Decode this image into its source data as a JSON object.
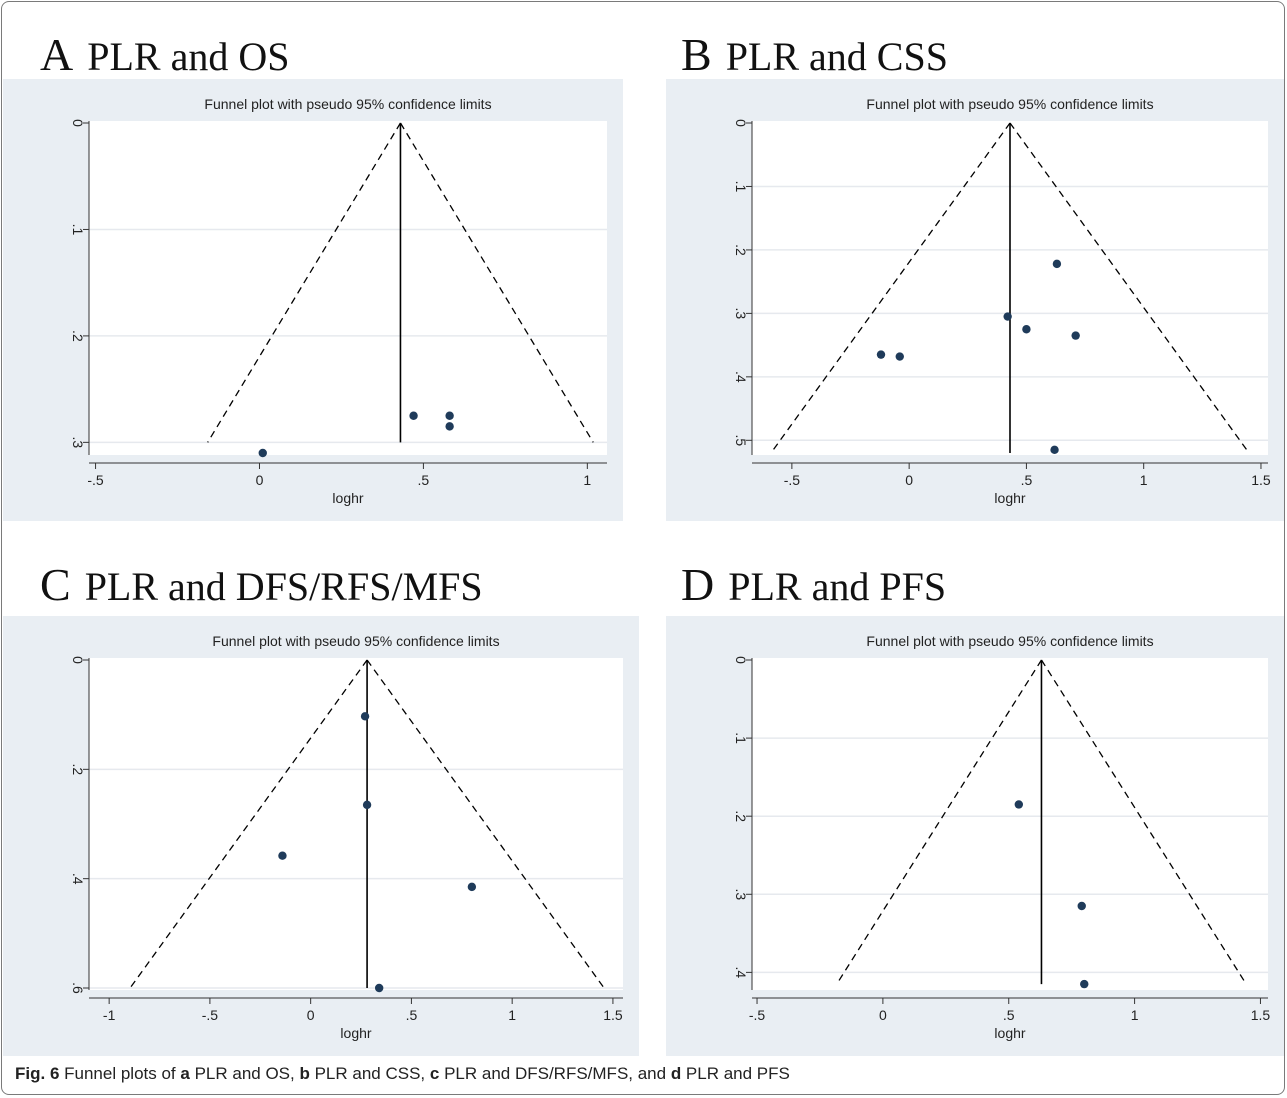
{
  "figure": {
    "caption": {
      "label": "Fig. 6",
      "parts": [
        {
          "text": " Funnel plots of ",
          "bold": false
        },
        {
          "text": "a",
          "bold": true
        },
        {
          "text": " PLR and OS, ",
          "bold": false
        },
        {
          "text": "b",
          "bold": true
        },
        {
          "text": " PLR and CSS, ",
          "bold": false
        },
        {
          "text": "c",
          "bold": true
        },
        {
          "text": " PLR and DFS/RFS/MFS, and ",
          "bold": false
        },
        {
          "text": "d",
          "bold": true
        },
        {
          "text": " PLR and PFS",
          "bold": false
        }
      ]
    },
    "colors": {
      "plot_bg": "#e9eef3",
      "panel_bg": "#ffffff",
      "marker": "#1f3b5a",
      "line": "#000000",
      "grid": "#ffffff"
    }
  },
  "panels": [
    {
      "letter": "A",
      "title": "PLR and OS"
    },
    {
      "letter": "B",
      "title": "PLR and CSS"
    },
    {
      "letter": "C",
      "title": "PLR and DFS/RFS/MFS"
    },
    {
      "letter": "D",
      "title": "PLR and PFS"
    }
  ],
  "chart_data": [
    {
      "type": "scatter",
      "title": "Funnel plot with pseudo 95% confidence limits",
      "xlabel": "loghr",
      "ylabel": "",
      "xlim": [
        -0.52,
        1.06
      ],
      "ylim": [
        0,
        0.31
      ],
      "y_reversed": true,
      "xticks": [
        {
          "v": -0.5,
          "t": "-.5"
        },
        {
          "v": 0,
          "t": "0"
        },
        {
          "v": 0.5,
          "t": ".5"
        },
        {
          "v": 1,
          "t": "1"
        }
      ],
      "yticks": [
        {
          "v": 0,
          "t": "0"
        },
        {
          "v": 0.1,
          "t": ".1"
        },
        {
          "v": 0.2,
          "t": ".2"
        },
        {
          "v": 0.3,
          "t": ".3"
        }
      ],
      "pooled_loghr": 0.43,
      "funnel_max_se": 0.3,
      "points": [
        {
          "x": 0.01,
          "y": 0.31
        },
        {
          "x": 0.47,
          "y": 0.275
        },
        {
          "x": 0.58,
          "y": 0.275
        },
        {
          "x": 0.58,
          "y": 0.285
        }
      ],
      "grid": true
    },
    {
      "type": "scatter",
      "title": "Funnel plot with pseudo 95% confidence limits",
      "xlabel": "loghr",
      "ylabel": "",
      "xlim": [
        -0.67,
        1.53
      ],
      "ylim": [
        0,
        0.52
      ],
      "y_reversed": true,
      "xticks": [
        {
          "v": -0.5,
          "t": "-.5"
        },
        {
          "v": 0,
          "t": "0"
        },
        {
          "v": 0.5,
          "t": ".5"
        },
        {
          "v": 1,
          "t": "1"
        },
        {
          "v": 1.5,
          "t": "1.5"
        }
      ],
      "yticks": [
        {
          "v": 0,
          "t": "0"
        },
        {
          "v": 0.1,
          "t": ".1"
        },
        {
          "v": 0.2,
          "t": ".2"
        },
        {
          "v": 0.3,
          "t": ".3"
        },
        {
          "v": 0.4,
          "t": ".4"
        },
        {
          "v": 0.5,
          "t": ".5"
        }
      ],
      "pooled_loghr": 0.43,
      "funnel_max_se": 0.52,
      "points": [
        {
          "x": -0.12,
          "y": 0.365
        },
        {
          "x": -0.04,
          "y": 0.368
        },
        {
          "x": 0.42,
          "y": 0.305
        },
        {
          "x": 0.5,
          "y": 0.325
        },
        {
          "x": 0.63,
          "y": 0.222
        },
        {
          "x": 0.71,
          "y": 0.335
        },
        {
          "x": 0.62,
          "y": 0.515
        }
      ],
      "grid": true
    },
    {
      "type": "scatter",
      "title": "Funnel plot with pseudo 95% confidence limits",
      "xlabel": "loghr",
      "ylabel": "",
      "xlim": [
        -1.1,
        1.55
      ],
      "ylim": [
        0,
        0.6
      ],
      "y_reversed": true,
      "xticks": [
        {
          "v": -1,
          "t": "-1"
        },
        {
          "v": -0.5,
          "t": "-.5"
        },
        {
          "v": 0,
          "t": "0"
        },
        {
          "v": 0.5,
          "t": ".5"
        },
        {
          "v": 1,
          "t": "1"
        },
        {
          "v": 1.5,
          "t": "1.5"
        }
      ],
      "yticks": [
        {
          "v": 0,
          "t": "0"
        },
        {
          "v": 0.2,
          "t": ".2"
        },
        {
          "v": 0.4,
          "t": ".4"
        },
        {
          "v": 0.6,
          "t": ".6"
        }
      ],
      "pooled_loghr": 0.28,
      "funnel_max_se": 0.6,
      "points": [
        {
          "x": 0.27,
          "y": 0.103
        },
        {
          "x": 0.28,
          "y": 0.265
        },
        {
          "x": -0.14,
          "y": 0.358
        },
        {
          "x": 0.8,
          "y": 0.415
        },
        {
          "x": 0.34,
          "y": 0.6
        }
      ],
      "grid": true
    },
    {
      "type": "scatter",
      "title": "Funnel plot with pseudo 95% confidence limits",
      "xlabel": "loghr",
      "ylabel": "",
      "xlim": [
        -0.52,
        1.53
      ],
      "ylim": [
        0,
        0.42
      ],
      "y_reversed": true,
      "xticks": [
        {
          "v": -0.5,
          "t": "-.5"
        },
        {
          "v": 0,
          "t": "0"
        },
        {
          "v": 0.5,
          "t": ".5"
        },
        {
          "v": 1,
          "t": "1"
        },
        {
          "v": 1.5,
          "t": "1.5"
        }
      ],
      "yticks": [
        {
          "v": 0,
          "t": "0"
        },
        {
          "v": 0.1,
          "t": ".1"
        },
        {
          "v": 0.2,
          "t": ".2"
        },
        {
          "v": 0.3,
          "t": ".3"
        },
        {
          "v": 0.4,
          "t": ".4"
        }
      ],
      "pooled_loghr": 0.63,
      "funnel_max_se": 0.415,
      "points": [
        {
          "x": 0.54,
          "y": 0.185
        },
        {
          "x": 0.79,
          "y": 0.315
        },
        {
          "x": 0.8,
          "y": 0.415
        }
      ],
      "grid": true
    }
  ]
}
